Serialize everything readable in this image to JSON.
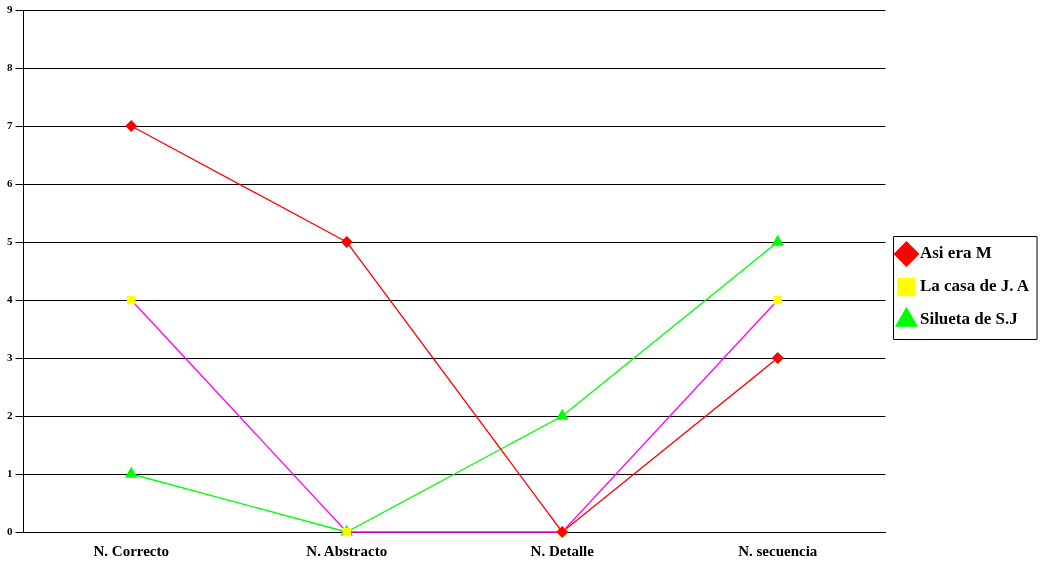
{
  "chart_data": {
    "type": "line",
    "categories": [
      "N. Correcto",
      "N. Abstracto",
      "N. Detalle",
      "N. secuencia"
    ],
    "series": [
      {
        "name": "Asi era M",
        "color": "#ff0000",
        "marker": "diamond",
        "values": [
          7,
          5,
          0,
          3
        ]
      },
      {
        "name": "La casa de J. A",
        "color": "#ff00ff",
        "colors": [
          "#ffff00",
          "#ffff00",
          "#ffff00",
          "#ffff00"
        ],
        "marker": "square",
        "values": [
          4,
          0,
          0,
          4
        ]
      },
      {
        "name": "Silueta de S.J",
        "color": "#00ff00",
        "marker": "triangle",
        "values": [
          1,
          0,
          2,
          5
        ]
      }
    ],
    "ylim": [
      0,
      9
    ],
    "yticks": [
      0,
      1,
      2,
      3,
      4,
      5,
      6,
      7,
      8,
      9
    ],
    "grid": "y",
    "legend": "right",
    "line_style": "solid"
  }
}
